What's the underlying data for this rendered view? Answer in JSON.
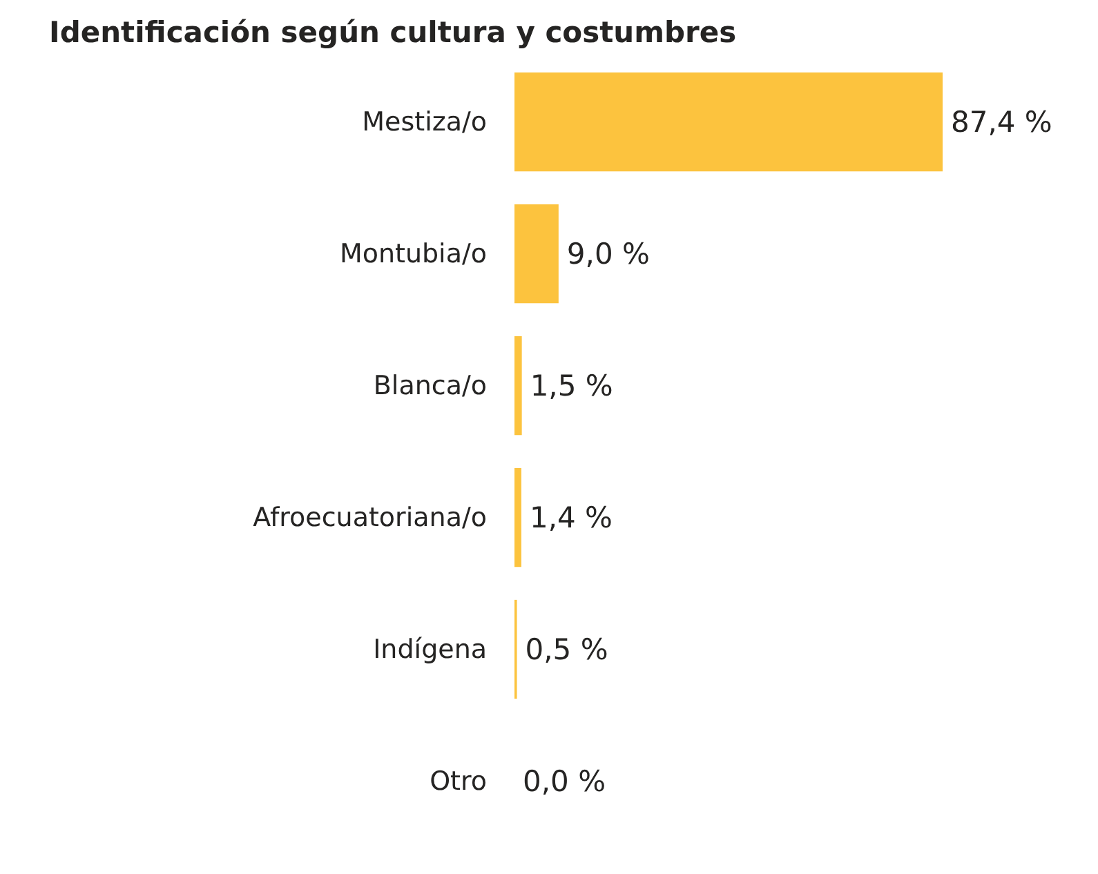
{
  "chart_data": {
    "type": "bar",
    "orientation": "horizontal",
    "title": "Identificación según cultura y costumbres",
    "categories": [
      "Mestiza/o",
      "Montubia/o",
      "Blanca/o",
      "Afroecuatoriana/o",
      "Indígena",
      "Otro"
    ],
    "values": [
      87.4,
      9.0,
      1.5,
      1.4,
      0.5,
      0.0
    ],
    "value_labels": [
      "87,4 %",
      "9,0 %",
      "1,5 %",
      "1,4 %",
      "0,5 %",
      "0,0 %"
    ],
    "color": "#fcc33e",
    "tick_labels": "y",
    "grid": false
  }
}
